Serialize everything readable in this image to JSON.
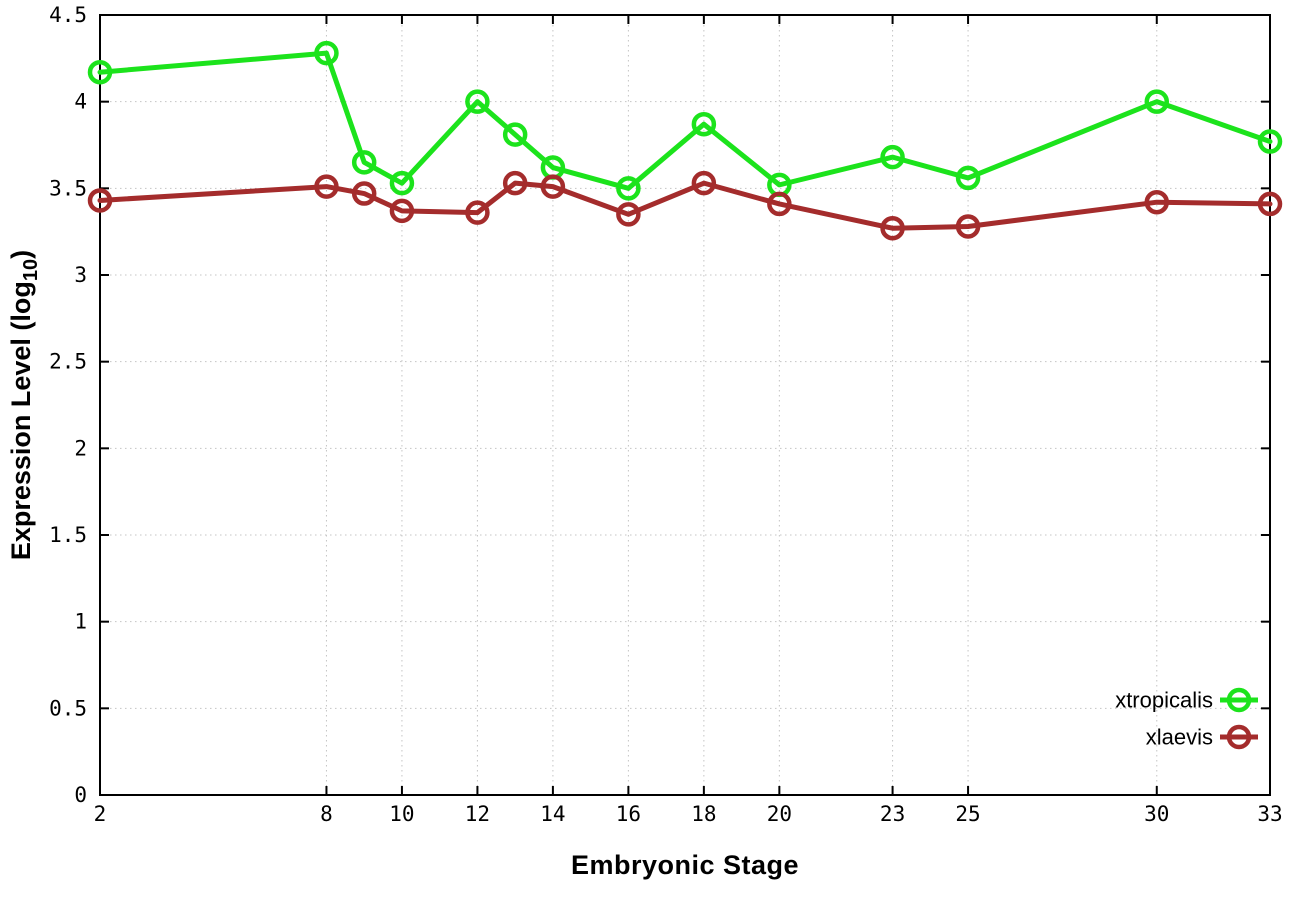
{
  "page": {
    "background": "#ffffff"
  },
  "chart_data": {
    "type": "line",
    "title": "",
    "xlabel": "Embryonic Stage",
    "ylabel": "Expression Level (log10)",
    "ylabel_parts": {
      "main": "Expression Level (log",
      "sub": "10",
      "close": ")"
    },
    "xlim": [
      2,
      33
    ],
    "ylim": [
      0,
      4.5
    ],
    "grid": true,
    "grid_style": "dotted",
    "legend_position": "bottom-right",
    "xticks": [
      "2",
      "8",
      "10",
      "12",
      "14",
      "16",
      "18",
      "20",
      "23",
      "25",
      "30",
      "33"
    ],
    "yticks": [
      "0",
      "0.5",
      "1",
      "1.5",
      "2",
      "2.5",
      "3",
      "3.5",
      "4",
      "4.5"
    ],
    "x": [
      2,
      8,
      9,
      10,
      12,
      13,
      14,
      16,
      18,
      20,
      23,
      25,
      30,
      33
    ],
    "series": [
      {
        "name": "xtropicalis",
        "color": "#1ce31c",
        "marker": "open-circle",
        "values": [
          4.17,
          4.28,
          3.65,
          3.53,
          4.0,
          3.81,
          3.62,
          3.5,
          3.87,
          3.52,
          3.68,
          3.56,
          4.0,
          3.77
        ]
      },
      {
        "name": "xlaevis",
        "color": "#a42c2c",
        "marker": "open-circle",
        "values": [
          3.43,
          3.51,
          3.47,
          3.37,
          3.36,
          3.53,
          3.51,
          3.35,
          3.53,
          3.41,
          3.27,
          3.28,
          3.42,
          3.41
        ]
      }
    ],
    "styles": {
      "grid_color": "#c4c4c4",
      "axis_color": "#000000",
      "tick_label_color": "#000000",
      "line_width": 5,
      "marker_radius": 10,
      "marker_stroke": 4.5
    }
  }
}
